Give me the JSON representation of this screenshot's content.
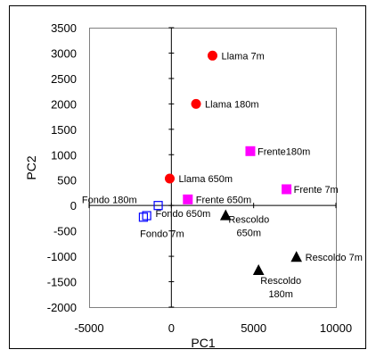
{
  "chart_data": {
    "type": "scatter",
    "xlabel": "PC1",
    "ylabel": "PC2",
    "xlim": [
      -5000,
      10000
    ],
    "ylim": [
      -2000,
      3500
    ],
    "xticks": [
      -5000,
      0,
      5000,
      10000
    ],
    "yticks": [
      -2000,
      -1500,
      -1000,
      -500,
      0,
      500,
      1000,
      1500,
      2000,
      2500,
      3000,
      3500
    ],
    "grid": false,
    "zero_lines": true,
    "groups": [
      {
        "marker": "circle",
        "color": "#ff0000",
        "filled": true,
        "points": [
          {
            "x": 2500,
            "y": 2950,
            "label": "Llama 7m"
          },
          {
            "x": 1500,
            "y": 2000,
            "label": "Llama 180m"
          },
          {
            "x": -100,
            "y": 530,
            "label": "Llama 650m"
          }
        ]
      },
      {
        "marker": "square",
        "color": "#ff00ff",
        "filled": true,
        "points": [
          {
            "x": 4800,
            "y": 1070,
            "label": "Frente180m"
          },
          {
            "x": 7000,
            "y": 320,
            "label": "Frente 7m"
          },
          {
            "x": 1000,
            "y": 120,
            "label": "Frente 650m"
          }
        ]
      },
      {
        "marker": "square",
        "color": "#0000ff",
        "filled": false,
        "points": [
          {
            "x": -1500,
            "y": -200,
            "label": "Fondo 180m"
          },
          {
            "x": -1700,
            "y": -230,
            "label": "Fondo 7m"
          },
          {
            "x": -800,
            "y": 0,
            "label": "Fondo 650m"
          }
        ]
      },
      {
        "marker": "triangle",
        "color": "#000000",
        "filled": true,
        "points": [
          {
            "x": 3300,
            "y": -200,
            "label": "Rescoldo 650m"
          },
          {
            "x": 7600,
            "y": -1020,
            "label": "Rescoldo 7m"
          },
          {
            "x": 5300,
            "y": -1280,
            "label": "Rescoldo 180m"
          }
        ]
      }
    ]
  }
}
